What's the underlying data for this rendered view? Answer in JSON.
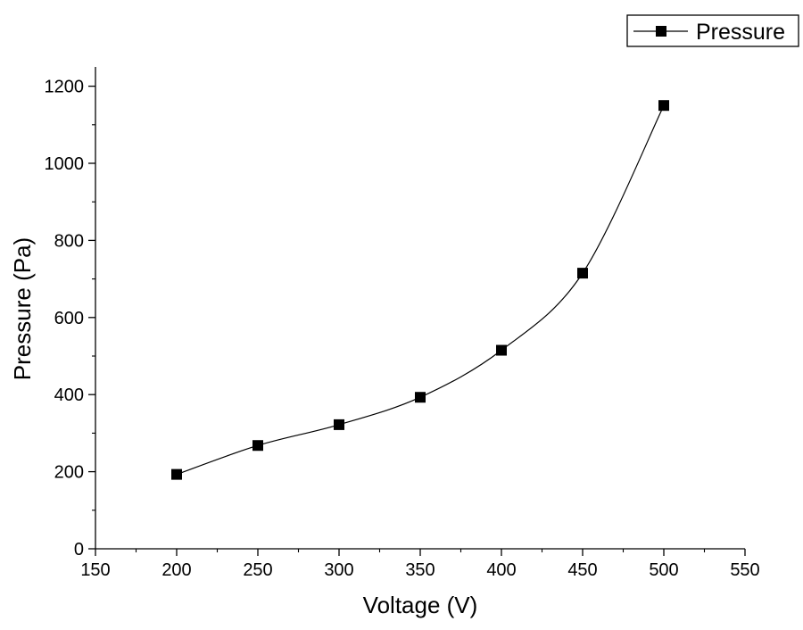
{
  "chart_data": {
    "type": "line",
    "title": "",
    "xlabel": "Voltage (V)",
    "ylabel": "Pressure (Pa)",
    "xlim": [
      150,
      550
    ],
    "ylim": [
      0,
      1250
    ],
    "x_ticks": [
      150,
      200,
      250,
      300,
      350,
      400,
      450,
      500,
      550
    ],
    "y_ticks": [
      0,
      200,
      400,
      600,
      800,
      1000,
      1200
    ],
    "y_minor_ticks": [
      100,
      300,
      500,
      700,
      900,
      1100
    ],
    "grid": false,
    "legend_position": "top-right",
    "series": [
      {
        "name": "Pressure",
        "marker": "square",
        "color": "#000000",
        "x": [
          200,
          250,
          300,
          350,
          400,
          450,
          500
        ],
        "y": [
          193,
          268,
          322,
          393,
          515,
          715,
          1150
        ]
      }
    ]
  }
}
